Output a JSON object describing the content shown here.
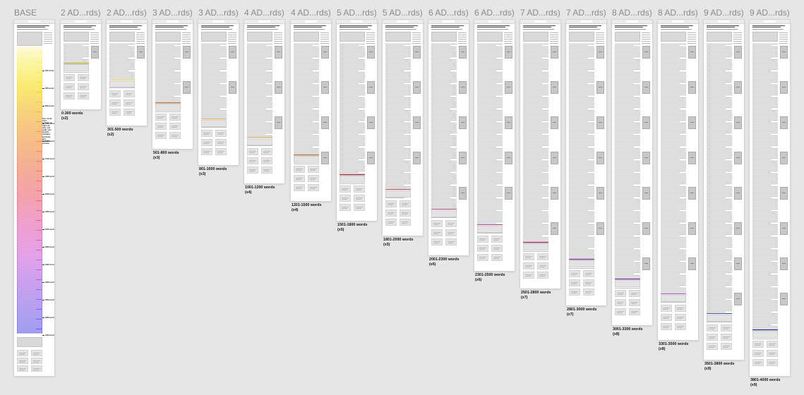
{
  "canvas": {
    "background": "#e6e6e6",
    "frames": [
      {
        "title": "BASE",
        "caption": "",
        "multiplier": ""
      },
      {
        "title": "2 AD...rds)",
        "caption": "0-300 words",
        "multiplier": "(x2)"
      },
      {
        "title": "2 AD...rds)",
        "caption": "301-500 words",
        "multiplier": "(x2)"
      },
      {
        "title": "3 AD...rds)",
        "caption": "501-800 words",
        "multiplier": "(x3)"
      },
      {
        "title": "3 AD...rds)",
        "caption": "801-1000 words",
        "multiplier": "(x3)"
      },
      {
        "title": "4 AD...rds)",
        "caption": "1001-1200 words",
        "multiplier": "(x4)"
      },
      {
        "title": "4 AD...rds)",
        "caption": "1201-1500 words",
        "multiplier": "(x4)"
      },
      {
        "title": "5 AD...rds)",
        "caption": "1501-1800 words",
        "multiplier": "(x5)"
      },
      {
        "title": "5 AD...rds)",
        "caption": "1801-2000 words",
        "multiplier": "(x5)"
      },
      {
        "title": "6 AD...rds)",
        "caption": "2001-2300 words",
        "multiplier": "(x6)"
      },
      {
        "title": "6 AD...rds)",
        "caption": "2301-2500 words",
        "multiplier": "(x6)"
      },
      {
        "title": "7 AD...rds)",
        "caption": "2501-2800 words",
        "multiplier": "(x7)"
      },
      {
        "title": "7 AD...rds)",
        "caption": "2801-3000 words",
        "multiplier": "(x7)"
      },
      {
        "title": "8 AD...rds)",
        "caption": "3001-3300 words",
        "multiplier": "(x8)"
      },
      {
        "title": "8 AD...rds)",
        "caption": "3301-3500 words",
        "multiplier": "(x8)"
      },
      {
        "title": "9 AD...rds)",
        "caption": "3501-3800 words",
        "multiplier": "(x9)"
      },
      {
        "title": "9 AD...rds)",
        "caption": "3801-4000 words",
        "multiplier": "(x9)"
      }
    ],
    "base": {
      "note": "Two round-trees perhaps on right rail only, and make sure include standard footnotes and billboard position",
      "markers": [
        "300 words",
        "500 words",
        "800 words",
        "1000 words",
        "1200 words",
        "1500 words",
        "1800 words",
        "2000 words",
        "2300 words",
        "2500 words",
        "2800 words",
        "3000 words",
        "3300 words",
        "3500 words",
        "3800 words",
        "4000 words"
      ]
    },
    "colors": {
      "accent_yellow": "#f2c21b",
      "accent_orange": "#f08a24",
      "accent_red": "#e0303a",
      "accent_magenta": "#d0247a",
      "accent_purple": "#9b2fd0",
      "accent_blue": "#3340d6"
    }
  }
}
